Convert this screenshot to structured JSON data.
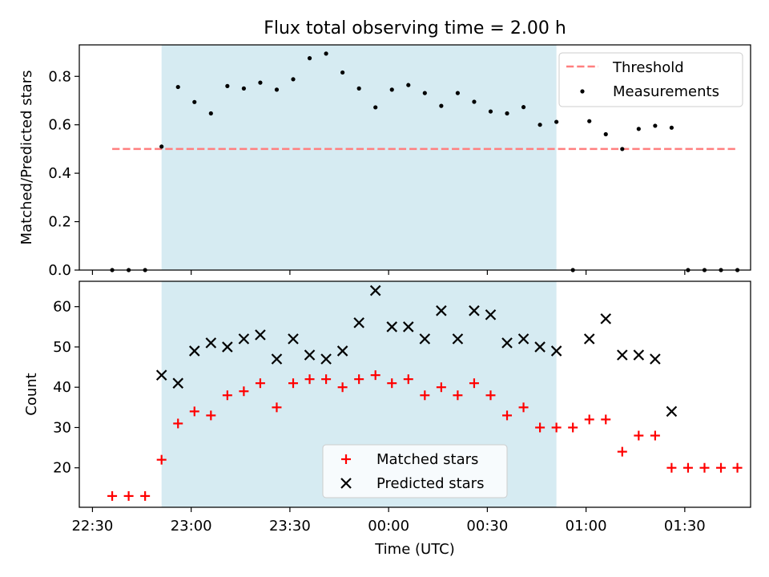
{
  "chart_data": [
    {
      "type": "scatter",
      "title": "Flux total observing time = 2.00 h",
      "xlabel": "",
      "ylabel": "Matched/Predicted stars",
      "ylim": [
        0.0,
        0.93
      ],
      "yticks": [
        0.0,
        0.2,
        0.4,
        0.6,
        0.8
      ],
      "yticklabels": [
        "0.0",
        "0.2",
        "0.4",
        "0.6",
        "0.8"
      ],
      "xlim": [
        "22:26",
        "01:50"
      ],
      "grid": false,
      "shaded_span": {
        "x_start": "22:51",
        "x_end": "00:51",
        "color": "#add8e6"
      },
      "legend": {
        "placement": "top-right",
        "entries": [
          "Threshold",
          "Measurements"
        ]
      },
      "series": [
        {
          "name": "Threshold",
          "style": "dashed-line",
          "color": "#ff7f7f",
          "x": [
            "22:36",
            "01:46"
          ],
          "y": [
            0.5,
            0.5
          ]
        },
        {
          "name": "Measurements",
          "style": "dot",
          "color": "#000000",
          "x": [
            "22:36",
            "22:41",
            "22:46",
            "22:51",
            "22:56",
            "23:01",
            "23:06",
            "23:11",
            "23:16",
            "23:21",
            "23:26",
            "23:31",
            "23:36",
            "23:41",
            "23:46",
            "23:51",
            "23:56",
            "00:01",
            "00:06",
            "00:11",
            "00:16",
            "00:21",
            "00:26",
            "00:31",
            "00:36",
            "00:41",
            "00:46",
            "00:51",
            "00:56",
            "01:01",
            "01:06",
            "01:11",
            "01:16",
            "01:21",
            "01:26",
            "01:31",
            "01:36",
            "01:41",
            "01:46"
          ],
          "y": [
            0.0,
            0.0,
            0.0,
            0.51,
            0.756,
            0.694,
            0.647,
            0.76,
            0.75,
            0.774,
            0.745,
            0.788,
            0.875,
            0.894,
            0.816,
            0.75,
            0.672,
            0.745,
            0.764,
            0.731,
            0.678,
            0.731,
            0.695,
            0.655,
            0.647,
            0.673,
            0.6,
            0.612,
            0.0,
            0.615,
            0.561,
            0.5,
            0.583,
            0.596,
            0.588,
            0.0,
            0.0,
            0.0,
            0.0
          ]
        }
      ]
    },
    {
      "type": "scatter",
      "title": "",
      "xlabel": "Time (UTC)",
      "ylabel": "Count",
      "ylim": [
        10.2,
        66.3
      ],
      "yticks": [
        20,
        30,
        40,
        50,
        60
      ],
      "yticklabels": [
        "20",
        "30",
        "40",
        "50",
        "60"
      ],
      "xlim": [
        "22:26",
        "01:50"
      ],
      "xticks": [
        "22:30",
        "23:00",
        "23:30",
        "00:00",
        "00:30",
        "01:00",
        "01:30"
      ],
      "grid": false,
      "shaded_span": {
        "x_start": "22:51",
        "x_end": "00:51",
        "color": "#add8e6"
      },
      "legend": {
        "placement": "lower-center",
        "entries": [
          "Matched stars",
          "Predicted stars"
        ]
      },
      "series": [
        {
          "name": "Matched stars",
          "marker": "plus",
          "color": "#ff0000",
          "x": [
            "22:36",
            "22:41",
            "22:46",
            "22:51",
            "22:56",
            "23:01",
            "23:06",
            "23:11",
            "23:16",
            "23:21",
            "23:26",
            "23:31",
            "23:36",
            "23:41",
            "23:46",
            "23:51",
            "23:56",
            "00:01",
            "00:06",
            "00:11",
            "00:16",
            "00:21",
            "00:26",
            "00:31",
            "00:36",
            "00:41",
            "00:46",
            "00:51",
            "00:56",
            "01:01",
            "01:06",
            "01:11",
            "01:16",
            "01:21",
            "01:26",
            "01:31",
            "01:36",
            "01:41",
            "01:46"
          ],
          "y": [
            13,
            13,
            13,
            22,
            31,
            34,
            33,
            38,
            39,
            41,
            35,
            41,
            42,
            42,
            40,
            42,
            43,
            41,
            42,
            38,
            40,
            38,
            41,
            38,
            33,
            35,
            30,
            30,
            30,
            32,
            32,
            24,
            28,
            28,
            20,
            20,
            20,
            20,
            20
          ]
        },
        {
          "name": "Predicted stars",
          "marker": "x",
          "color": "#000000",
          "x": [
            "22:51",
            "22:56",
            "23:01",
            "23:06",
            "23:11",
            "23:16",
            "23:21",
            "23:26",
            "23:31",
            "23:36",
            "23:41",
            "23:46",
            "23:51",
            "23:56",
            "00:01",
            "00:06",
            "00:11",
            "00:16",
            "00:21",
            "00:26",
            "00:31",
            "00:36",
            "00:41",
            "00:46",
            "00:51",
            "01:01",
            "01:06",
            "01:11",
            "01:16",
            "01:21",
            "01:26"
          ],
          "y": [
            43,
            41,
            49,
            51,
            50,
            52,
            53,
            47,
            52,
            48,
            47,
            49,
            56,
            64,
            55,
            55,
            52,
            59,
            52,
            59,
            58,
            51,
            52,
            50,
            49,
            52,
            57,
            48,
            48,
            47,
            34
          ]
        }
      ]
    }
  ]
}
